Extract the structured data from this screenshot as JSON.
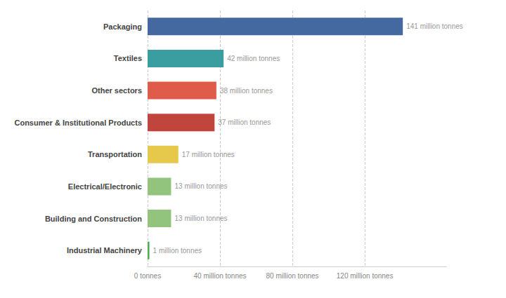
{
  "chart_data": {
    "type": "bar",
    "orientation": "horizontal",
    "categories": [
      "Industrial Machinery",
      "Building and Construction",
      "Electrical/Electronic",
      "Transportation",
      "Consumer & Institutional Products",
      "Other sectors",
      "Textiles",
      "Packaging"
    ],
    "values": [
      1,
      13,
      13,
      17,
      37,
      38,
      42,
      141
    ],
    "value_labels": [
      "1 million tonnes",
      "13 million tonnes",
      "13 million tonnes",
      "17 million tonnes",
      "37 million tonnes",
      "38 million tonnes",
      "42 million tonnes",
      "141 million tonnes"
    ],
    "colors": [
      "#4caf50",
      "#93c47d",
      "#93c47d",
      "#e6c84a",
      "#c0453c",
      "#e05c4a",
      "#3a9ea0",
      "#4469a0"
    ],
    "data_labels": true,
    "xlim": [
      0,
      165
    ],
    "xticks": [
      {
        "value": 0,
        "label": "0 tonnes"
      },
      {
        "value": 40,
        "label": "40 million tonnes"
      },
      {
        "value": 80,
        "label": "80 million tonnes"
      },
      {
        "value": 120,
        "label": "120 million tonnes"
      }
    ],
    "grid": true
  }
}
